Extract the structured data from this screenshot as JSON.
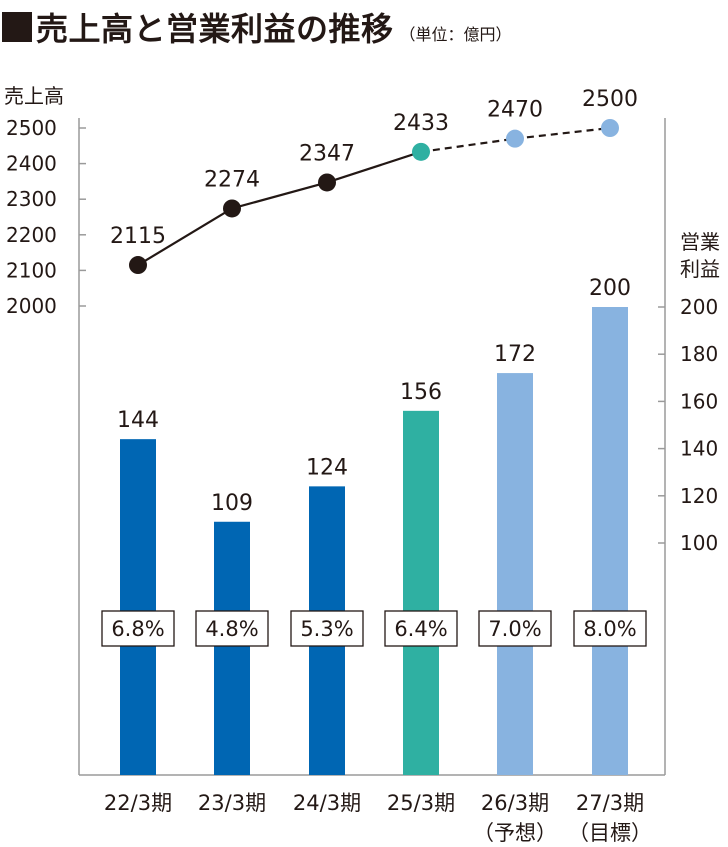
{
  "title": {
    "marker": "■",
    "text": "売上高と営業利益の推移",
    "unit": "（単位：億円）"
  },
  "chart_data": {
    "type": "bar+line",
    "categories": [
      "22/3期",
      "23/3期",
      "24/3期",
      "25/3期",
      "26/3期",
      "27/3期"
    ],
    "category_notes": [
      "",
      "",
      "",
      "",
      "（予想）",
      "（目標）"
    ],
    "bar_series": {
      "axis_title_lines": [
        "営業",
        "利益"
      ],
      "values": [
        144,
        109,
        124,
        156,
        172,
        200
      ],
      "ylim": [
        0,
        200
      ],
      "yticks": [
        100,
        120,
        140,
        160,
        180,
        200
      ]
    },
    "line_series": {
      "axis_title": "売上高",
      "values": [
        2115,
        2274,
        2347,
        2433,
        2470,
        2500
      ],
      "ylim": [
        2000,
        2500
      ],
      "yticks": [
        2000,
        2100,
        2200,
        2300,
        2400,
        2500
      ],
      "dashed_from_index": 3
    },
    "ratios": [
      "6.8%",
      "4.8%",
      "5.3%",
      "6.4%",
      "7.0%",
      "8.0%"
    ],
    "colors": {
      "actual": "#0066b3",
      "latest": "#2fb0a2",
      "forecast": "#88b3e0",
      "line": "#231815",
      "text": "#231815"
    },
    "grid": false,
    "legend": "none"
  }
}
